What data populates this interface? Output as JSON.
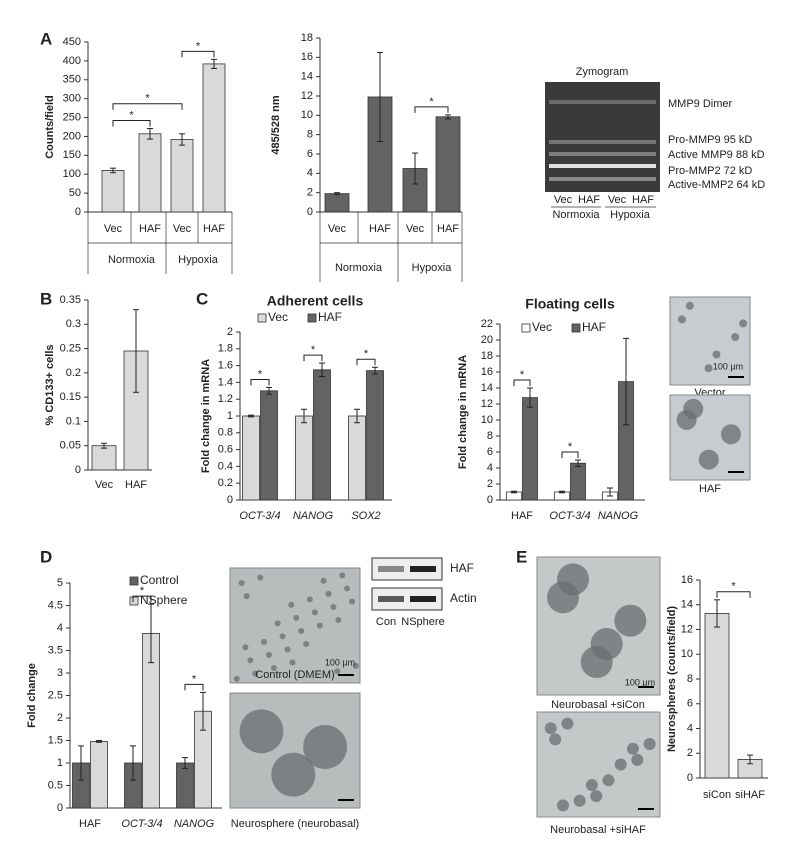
{
  "panel_labels": [
    "A",
    "B",
    "C",
    "D",
    "E"
  ],
  "chart_data": [
    {
      "type": "bar",
      "ylabel": "Counts/field",
      "categories": [
        "Vec",
        "HAF",
        "Vec",
        "HAF"
      ],
      "groups": [
        "Normoxia",
        "Hypoxia"
      ],
      "values": [
        110,
        207,
        192,
        392
      ],
      "errors": [
        6,
        14,
        15,
        12
      ],
      "color": "#d9d9d9",
      "ylim": [
        0,
        450
      ],
      "yticks": [
        0,
        50,
        100,
        150,
        200,
        250,
        300,
        350,
        400,
        450
      ],
      "significance": [
        "*",
        "*",
        "*"
      ]
    },
    {
      "type": "bar",
      "ylabel": "485/528 nm",
      "categories": [
        "Vec",
        "HAF",
        "Vec",
        "HAF"
      ],
      "groups": [
        "Normoxia",
        "Hypoxia"
      ],
      "values": [
        1.9,
        11.9,
        4.5,
        9.85
      ],
      "errors": [
        0.1,
        4.6,
        1.6,
        0.2
      ],
      "color": "#636363",
      "ylim": [
        0,
        18
      ],
      "yticks": [
        0,
        2,
        4,
        6,
        8,
        10,
        12,
        14,
        16,
        18
      ],
      "significance": [
        "*"
      ]
    },
    {
      "type": "bar",
      "ylabel": "% CD133+ cells",
      "categories": [
        "Vec",
        "HAF"
      ],
      "values": [
        0.05,
        0.245
      ],
      "errors": [
        0.005,
        0.085
      ],
      "color": "#d9d9d9",
      "ylim": [
        0,
        0.35
      ],
      "yticks": [
        0,
        0.05,
        0.1,
        0.15,
        0.2,
        0.25,
        0.3,
        0.35
      ]
    },
    {
      "type": "bar",
      "title": "Adherent cells",
      "ylabel": "Fold change in mRNA",
      "categories": [
        "OCT-3/4",
        "NANOG",
        "SOX2"
      ],
      "series": [
        {
          "name": "Vec",
          "color": "#d9d9d9",
          "values": [
            1,
            1,
            1
          ],
          "errors": [
            0.01,
            0.08,
            0.08
          ]
        },
        {
          "name": "HAF",
          "color": "#636363",
          "values": [
            1.3,
            1.55,
            1.54
          ],
          "errors": [
            0.04,
            0.08,
            0.04
          ]
        }
      ],
      "ylim": [
        0,
        2
      ],
      "yticks": [
        0,
        0.2,
        0.4,
        0.6,
        0.8,
        1,
        1.2,
        1.4,
        1.6,
        1.8,
        2
      ],
      "significance": [
        "*",
        "*",
        "*"
      ]
    },
    {
      "type": "bar",
      "title": "Floating cells",
      "ylabel": "Fold change in mRNA",
      "categories": [
        "HAF",
        "OCT-3/4",
        "NANOG"
      ],
      "series": [
        {
          "name": "Vec",
          "color": "#ffffff",
          "values": [
            1,
            1,
            1
          ],
          "errors": [
            0.1,
            0.1,
            0.5
          ]
        },
        {
          "name": "HAF",
          "color": "#636363",
          "values": [
            12.8,
            4.6,
            14.8
          ],
          "errors": [
            1.2,
            0.4,
            5.4
          ]
        }
      ],
      "ylim": [
        0,
        22
      ],
      "yticks": [
        0,
        2,
        4,
        6,
        8,
        10,
        12,
        14,
        16,
        18,
        20,
        22
      ],
      "significance": [
        "*",
        "*"
      ]
    },
    {
      "type": "bar",
      "ylabel": "Fold change",
      "categories": [
        "HAF",
        "OCT-3/4",
        "NANOG"
      ],
      "series": [
        {
          "name": "Control",
          "color": "#636363",
          "values": [
            1,
            1,
            1
          ],
          "errors": [
            0.38,
            0.38,
            0.12
          ]
        },
        {
          "name": "NSphere",
          "color": "#d9d9d9",
          "values": [
            1.48,
            3.88,
            2.15
          ],
          "errors": [
            0.02,
            0.65,
            0.42
          ]
        }
      ],
      "ylim": [
        0,
        5
      ],
      "yticks": [
        0,
        0.5,
        1,
        1.5,
        2,
        2.5,
        3,
        3.5,
        4,
        4.5,
        5
      ],
      "significance": [
        "*",
        "*"
      ]
    },
    {
      "type": "bar",
      "ylabel": "Neurospheres (counts/field)",
      "categories": [
        "siCon",
        "siHAF"
      ],
      "values": [
        13.3,
        1.5
      ],
      "errors": [
        1.1,
        0.35
      ],
      "color": "#d9d9d9",
      "ylim": [
        0,
        16
      ],
      "yticks": [
        0,
        2,
        4,
        6,
        8,
        10,
        12,
        14,
        16
      ],
      "significance": [
        "*"
      ]
    }
  ],
  "zymogram": {
    "title": "Zymogram",
    "bands": [
      "MMP9 Dimer",
      "Pro-MMP9 95 kD",
      "Active MMP9 88 kD",
      "Pro-MMP2 72 kD",
      "Active-MMP2 64 kD"
    ],
    "lanes": [
      "Vec",
      "HAF",
      "Vec",
      "HAF"
    ],
    "groups": [
      "Normoxia",
      "Hypoxia"
    ]
  },
  "images": [
    {
      "caption": "Vector",
      "scale": "100 µm"
    },
    {
      "caption": "HAF"
    },
    {
      "caption": "Control (DMEM)",
      "scale": "100 µm"
    },
    {
      "caption": "Neurosphere (neurobasal)"
    },
    {
      "caption": "Neurobasal +siCon",
      "scale": "100 µm"
    },
    {
      "caption": "Neurobasal +siHAF"
    }
  ],
  "western": {
    "rows": [
      "HAF",
      "Actin"
    ],
    "lanes": [
      "Con",
      "NSphere"
    ]
  }
}
